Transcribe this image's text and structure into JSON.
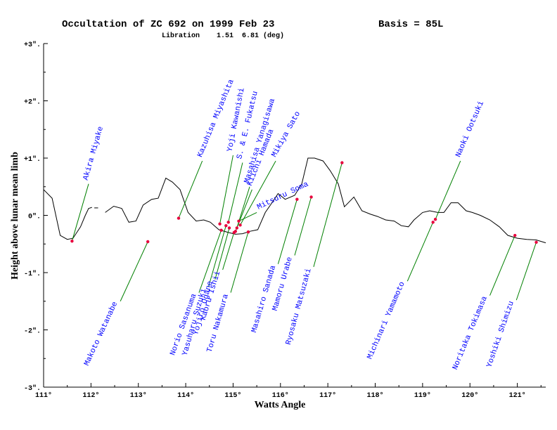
{
  "chart_data": {
    "type": "line",
    "title": "Occultation of ZC  692 on 1999 Feb 23",
    "basis": "Basis = 85L",
    "subtitle": "Libration    1.51  6.81 (deg)",
    "xlabel": "Watts Angle",
    "ylabel": "Height above lunar mean limb",
    "xlim": [
      111,
      121.6
    ],
    "ylim": [
      -3,
      3
    ],
    "x_ticks": [
      {
        "value": 111,
        "label": "111°"
      },
      {
        "value": 112,
        "label": "112°"
      },
      {
        "value": 113,
        "label": "113°"
      },
      {
        "value": 114,
        "label": "114°"
      },
      {
        "value": 115,
        "label": "115°"
      },
      {
        "value": 116,
        "label": "116°"
      },
      {
        "value": 117,
        "label": "117°"
      },
      {
        "value": 118,
        "label": "118°"
      },
      {
        "value": 119,
        "label": "119°"
      },
      {
        "value": 120,
        "label": "120°"
      },
      {
        "value": 121,
        "label": "121°"
      }
    ],
    "y_ticks": [
      {
        "value": 3,
        "label": "+3\"."
      },
      {
        "value": 2,
        "label": "+2\"."
      },
      {
        "value": 1,
        "label": "+1\"."
      },
      {
        "value": 0,
        "label": "0\"."
      },
      {
        "value": -1,
        "label": "-1\"."
      },
      {
        "value": -2,
        "label": "-2\"."
      },
      {
        "value": -3,
        "label": "-3\"."
      }
    ],
    "profile_segments": [
      [
        [
          111.0,
          0.45
        ],
        [
          111.18,
          0.3
        ],
        [
          111.35,
          -0.35
        ],
        [
          111.5,
          -0.42
        ],
        [
          111.62,
          -0.4
        ],
        [
          111.78,
          -0.2
        ],
        [
          111.88,
          0.0
        ],
        [
          111.95,
          0.12
        ],
        [
          112.02,
          0.14
        ]
      ],
      [
        [
          112.07,
          0.13
        ],
        [
          112.15,
          0.13
        ]
      ],
      [
        [
          112.3,
          0.05
        ],
        [
          112.48,
          0.16
        ],
        [
          112.65,
          0.12
        ],
        [
          112.8,
          -0.12
        ],
        [
          112.95,
          -0.1
        ],
        [
          113.1,
          0.18
        ],
        [
          113.28,
          0.28
        ],
        [
          113.42,
          0.3
        ],
        [
          113.58,
          0.65
        ],
        [
          113.72,
          0.58
        ],
        [
          113.88,
          0.45
        ],
        [
          114.05,
          0.05
        ],
        [
          114.22,
          -0.1
        ],
        [
          114.38,
          -0.08
        ],
        [
          114.52,
          -0.12
        ],
        [
          114.7,
          -0.25
        ],
        [
          114.9,
          -0.3
        ],
        [
          115.05,
          -0.33
        ],
        [
          115.2,
          -0.32
        ],
        [
          115.35,
          -0.28
        ],
        [
          115.52,
          -0.25
        ],
        [
          115.68,
          0.05
        ],
        [
          115.82,
          0.22
        ],
        [
          115.95,
          0.38
        ],
        [
          116.1,
          0.28
        ],
        [
          116.3,
          0.35
        ],
        [
          116.45,
          0.55
        ],
        [
          116.58,
          1.0
        ],
        [
          116.72,
          1.0
        ],
        [
          116.9,
          0.95
        ],
        [
          117.05,
          0.78
        ],
        [
          117.22,
          0.55
        ],
        [
          117.35,
          0.15
        ],
        [
          117.55,
          0.32
        ],
        [
          117.72,
          0.08
        ],
        [
          117.9,
          0.02
        ],
        [
          118.05,
          -0.02
        ],
        [
          118.22,
          -0.08
        ],
        [
          118.4,
          -0.1
        ],
        [
          118.55,
          -0.18
        ],
        [
          118.7,
          -0.2
        ],
        [
          118.82,
          -0.08
        ],
        [
          119.0,
          0.05
        ],
        [
          119.15,
          0.08
        ],
        [
          119.32,
          0.05
        ],
        [
          119.45,
          0.05
        ],
        [
          119.6,
          0.22
        ],
        [
          119.75,
          0.22
        ],
        [
          119.92,
          0.08
        ],
        [
          120.05,
          0.05
        ],
        [
          120.22,
          0.0
        ],
        [
          120.42,
          -0.08
        ],
        [
          120.62,
          -0.2
        ],
        [
          120.8,
          -0.35
        ],
        [
          121.0,
          -0.4
        ],
        [
          121.2,
          -0.42
        ],
        [
          121.4,
          -0.43
        ],
        [
          121.6,
          -0.48
        ]
      ]
    ],
    "observers": [
      {
        "name": "Akira Miyake",
        "x": 111.6,
        "y": -0.45,
        "label_x": 111.95,
        "label_y": 0.55,
        "dir": "up"
      },
      {
        "name": "Makoto Watanabe",
        "x": 113.2,
        "y": -0.46,
        "label_x": 112.62,
        "label_y": -1.5,
        "dir": "down"
      },
      {
        "name": "Kazuhisa Miyashita",
        "x": 113.85,
        "y": -0.05,
        "label_x": 114.35,
        "label_y": 0.95,
        "dir": "up"
      },
      {
        "name": "Norio Sasanuma",
        "x": 114.75,
        "y": -0.26,
        "label_x": 114.28,
        "label_y": -1.35,
        "dir": "down"
      },
      {
        "name": "Yasuharu Suzuki",
        "x": 114.85,
        "y": -0.18,
        "label_x": 114.48,
        "label_y": -1.25,
        "dir": "down"
      },
      {
        "name": "Yoji Kawanishi",
        "x": 114.72,
        "y": -0.15,
        "label_x": 115.0,
        "label_y": 1.05,
        "dir": "up"
      },
      {
        "name": "S. & E. Fukatsu",
        "x": 114.9,
        "y": -0.12,
        "label_x": 115.2,
        "label_y": 0.92,
        "dir": "up"
      },
      {
        "name": "Yojiro Ogane",
        "x": 114.92,
        "y": -0.22,
        "label_x": 114.62,
        "label_y": -1.12,
        "dir": "down"
      },
      {
        "name": "Kaoru Ishii",
        "x": 115.02,
        "y": -0.3,
        "label_x": 114.78,
        "label_y": -0.95,
        "dir": "down"
      },
      {
        "name": "Kiichi Hamada",
        "x": 115.05,
        "y": -0.28,
        "label_x": 115.4,
        "label_y": 0.45,
        "dir": "up"
      },
      {
        "name": "Masahisa Yanagisawa",
        "x": 115.08,
        "y": -0.22,
        "label_x": 115.35,
        "label_y": 0.5,
        "dir": "up"
      },
      {
        "name": "Mitsuru Soma",
        "x": 115.12,
        "y": -0.1,
        "label_x": 115.5,
        "label_y": 0.05,
        "dir": "up"
      },
      {
        "name": "Mikiya Sato",
        "x": 115.15,
        "y": -0.17,
        "label_x": 115.9,
        "label_y": 0.95,
        "dir": "up"
      },
      {
        "name": "Toru Nakamura",
        "x": 115.32,
        "y": -0.29,
        "label_x": 114.95,
        "label_y": -1.35,
        "dir": "down"
      },
      {
        "name": "Masahiro Sanada",
        "x": 116.35,
        "y": 0.28,
        "label_x": 115.95,
        "label_y": -0.85,
        "dir": "down"
      },
      {
        "name": "Mamoru Urabe",
        "x": 116.65,
        "y": 0.32,
        "label_x": 116.3,
        "label_y": -0.7,
        "dir": "down"
      },
      {
        "name": "Ryosaku Matsuzaki",
        "x": 117.3,
        "y": 0.92,
        "label_x": 116.7,
        "label_y": -0.9,
        "dir": "down"
      },
      {
        "name": "Michinari Yamamoto",
        "x": 119.22,
        "y": -0.12,
        "label_x": 118.68,
        "label_y": -1.15,
        "dir": "down"
      },
      {
        "name": "Naoki Ootsuki",
        "x": 119.27,
        "y": -0.07,
        "label_x": 119.8,
        "label_y": 0.95,
        "dir": "up"
      },
      {
        "name": "Noritaka Tokimasa",
        "x": 120.95,
        "y": -0.35,
        "label_x": 120.42,
        "label_y": -1.4,
        "dir": "down"
      },
      {
        "name": "Yoshiki Shimizu",
        "x": 121.4,
        "y": -0.47,
        "label_x": 120.98,
        "label_y": -1.48,
        "dir": "down"
      }
    ],
    "grid": false,
    "colors": {
      "profile": "#000000",
      "observer_line": "#008000",
      "observer_point": "#e8003d",
      "observer_label": "#0000ff"
    }
  }
}
